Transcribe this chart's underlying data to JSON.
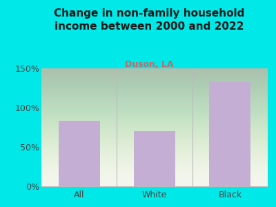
{
  "title": "Change in non-family household\nincome between 2000 and 2022",
  "subtitle": "Duson, LA",
  "categories": [
    "All",
    "White",
    "Black"
  ],
  "values": [
    83,
    70,
    133
  ],
  "bar_color": "#c4aed4",
  "title_color": "#1a1a1a",
  "subtitle_color": "#cc6666",
  "bg_color": "#00e8e8",
  "plot_bg_color_top": "#eaf4e0",
  "plot_bg_color_bottom": "#f5f5ec",
  "axis_color": "#bbbbbb",
  "tick_color": "#444444",
  "ylim": [
    0,
    150
  ],
  "yticks": [
    0,
    50,
    100,
    150
  ],
  "title_fontsize": 11,
  "subtitle_fontsize": 9,
  "tick_fontsize": 9
}
